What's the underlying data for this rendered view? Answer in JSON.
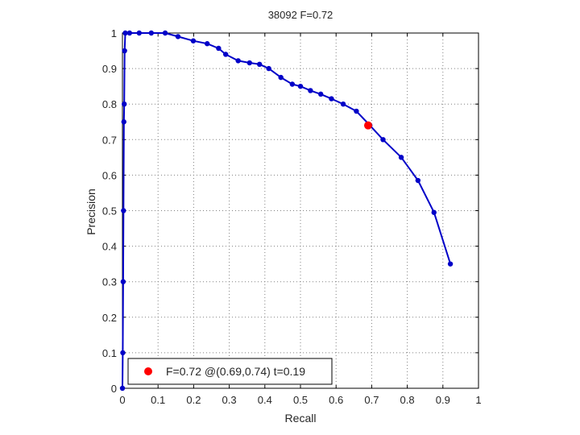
{
  "chart_data": {
    "type": "line",
    "title": "38092 F=0.72",
    "xlabel": "Recall",
    "ylabel": "Precision",
    "xlim": [
      0,
      1
    ],
    "ylim": [
      0,
      1
    ],
    "grid": true,
    "xticks": [
      0,
      0.1,
      0.2,
      0.3,
      0.4,
      0.5,
      0.6,
      0.7,
      0.8,
      0.9,
      1
    ],
    "yticks": [
      0,
      0.1,
      0.2,
      0.3,
      0.4,
      0.5,
      0.6,
      0.7,
      0.8,
      0.9,
      1
    ],
    "xtick_labels": [
      "0",
      "0.1",
      "0.2",
      "0.3",
      "0.4",
      "0.5",
      "0.6",
      "0.7",
      "0.8",
      "0.9",
      "1"
    ],
    "ytick_labels": [
      "0",
      "0.1",
      "0.2",
      "0.3",
      "0.4",
      "0.5",
      "0.6",
      "0.7",
      "0.8",
      "0.9",
      "1"
    ],
    "series": [
      {
        "color": "#0000c8",
        "x": [
          0,
          0.001,
          0.002,
          0.003,
          0.004,
          0.005,
          0.006,
          0.008,
          0.02,
          0.047,
          0.081,
          0.12,
          0.156,
          0.199,
          0.238,
          0.27,
          0.29,
          0.325,
          0.357,
          0.385,
          0.411,
          0.445,
          0.477,
          0.5,
          0.528,
          0.557,
          0.587,
          0.62,
          0.657,
          0.695,
          0.732,
          0.783,
          0.83,
          0.875,
          0.921
        ],
        "y": [
          0,
          0.1,
          0.3,
          0.5,
          0.75,
          0.8,
          0.95,
          1.0,
          1.0,
          1.0,
          1.0,
          1.0,
          0.99,
          0.978,
          0.97,
          0.957,
          0.94,
          0.922,
          0.916,
          0.912,
          0.9,
          0.875,
          0.856,
          0.85,
          0.838,
          0.828,
          0.815,
          0.8,
          0.78,
          0.74,
          0.7,
          0.65,
          0.585,
          0.495,
          0.35
        ]
      }
    ],
    "highlight_point": {
      "x": 0.69,
      "y": 0.74,
      "color": "#ff0000"
    },
    "legend": {
      "text": "F=0.72 @(0.69,0.74) t=0.19",
      "position": "bottom-left"
    }
  }
}
